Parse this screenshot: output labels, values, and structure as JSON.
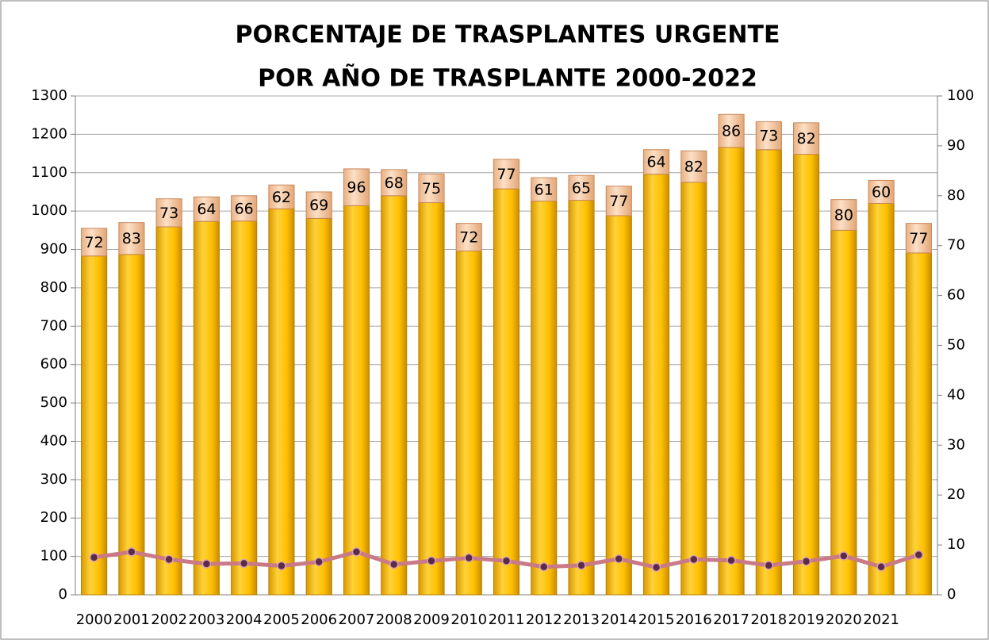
{
  "chart_data": {
    "type": "stacked_bar_line",
    "title": [
      "PORCENTAJE DE TRASPLANTES URGENTE",
      "POR AÑO DE TRASPLANTE 2000-2022"
    ],
    "categories": [
      "2000",
      "2001",
      "2002",
      "2003",
      "2004",
      "2005",
      "2006",
      "2007",
      "2008",
      "2009",
      "2010",
      "2011",
      "2012",
      "2013",
      "2014",
      "2015",
      "2016",
      "2017",
      "2018",
      "2019",
      "2020",
      "2021",
      null
    ],
    "series": [
      {
        "color": "#ffc000",
        "values": [
          883,
          887,
          959,
          973,
          974,
          1006,
          981,
          1014,
          1040,
          1022,
          896,
          1058,
          1026,
          1028,
          988,
          1096,
          1075,
          1166,
          1160,
          1148,
          950,
          1020,
          891
        ]
      },
      {
        "color": "#f7c9a3",
        "values": [
          72,
          83,
          73,
          64,
          66,
          62,
          69,
          96,
          68,
          75,
          72,
          77,
          61,
          65,
          77,
          64,
          82,
          86,
          73,
          82,
          80,
          60,
          77
        ],
        "show_labels": true
      },
      {
        "color": "#c97a86",
        "marker_color": "#5b2b48",
        "axis": "y2",
        "line": true,
        "values": [
          7.5,
          8.6,
          7.1,
          6.2,
          6.3,
          5.8,
          6.6,
          8.6,
          6.1,
          6.8,
          7.4,
          6.8,
          5.6,
          5.9,
          7.2,
          5.5,
          7.1,
          6.9,
          5.9,
          6.7,
          7.8,
          5.6,
          8.0
        ]
      }
    ],
    "ylim": [
      0,
      1300
    ],
    "yticks": [
      0,
      100,
      200,
      300,
      400,
      500,
      600,
      700,
      800,
      900,
      1000,
      1100,
      1200,
      1300
    ],
    "y2lim": [
      0,
      100
    ],
    "y2ticks": [
      0,
      10,
      20,
      30,
      40,
      50,
      60,
      70,
      80,
      90,
      100
    ],
    "grid": true
  }
}
